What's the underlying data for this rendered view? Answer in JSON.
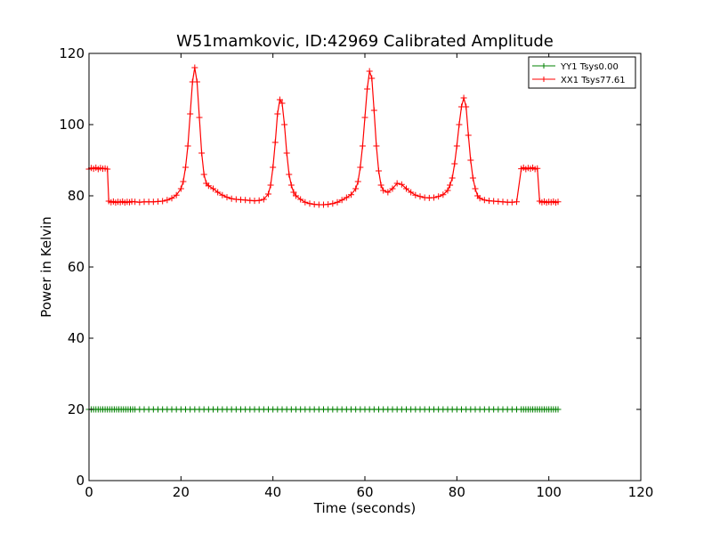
{
  "chart_data": {
    "type": "line",
    "title": "W51mamkovic, ID:42969 Calibrated Amplitude",
    "xlabel": "Time (seconds)",
    "ylabel": "Power in Kelvin",
    "xlim": [
      0,
      120
    ],
    "ylim": [
      0,
      120
    ],
    "xticks": [
      0,
      20,
      40,
      60,
      80,
      100,
      120
    ],
    "yticks": [
      0,
      20,
      40,
      60,
      80,
      100,
      120
    ],
    "grid": false,
    "legend_position": "top-right",
    "series": [
      {
        "name": "YY1 Tsys0.00",
        "color": "#008000",
        "marker": "+",
        "points": [
          [
            0,
            20
          ],
          [
            0.5,
            20
          ],
          [
            1,
            20
          ],
          [
            1.5,
            20
          ],
          [
            2,
            20
          ],
          [
            2.5,
            20
          ],
          [
            3,
            20
          ],
          [
            3.5,
            20
          ],
          [
            4,
            20
          ],
          [
            4.5,
            20
          ],
          [
            5,
            20
          ],
          [
            5.5,
            20
          ],
          [
            6,
            20
          ],
          [
            6.5,
            20
          ],
          [
            7,
            20
          ],
          [
            7.5,
            20
          ],
          [
            8,
            20
          ],
          [
            8.5,
            20
          ],
          [
            9,
            20
          ],
          [
            9.5,
            20
          ],
          [
            10,
            20
          ],
          [
            11,
            20
          ],
          [
            12,
            20
          ],
          [
            13,
            20
          ],
          [
            14,
            20
          ],
          [
            15,
            20
          ],
          [
            16,
            20
          ],
          [
            17,
            20
          ],
          [
            18,
            20
          ],
          [
            19,
            20
          ],
          [
            20,
            20
          ],
          [
            21,
            20
          ],
          [
            22,
            20
          ],
          [
            23,
            20
          ],
          [
            24,
            20
          ],
          [
            25,
            20
          ],
          [
            26,
            20
          ],
          [
            27,
            20
          ],
          [
            28,
            20
          ],
          [
            29,
            20
          ],
          [
            30,
            20
          ],
          [
            31,
            20
          ],
          [
            32,
            20
          ],
          [
            33,
            20
          ],
          [
            34,
            20
          ],
          [
            35,
            20
          ],
          [
            36,
            20
          ],
          [
            37,
            20
          ],
          [
            38,
            20
          ],
          [
            39,
            20
          ],
          [
            40,
            20
          ],
          [
            41,
            20
          ],
          [
            42,
            20
          ],
          [
            43,
            20
          ],
          [
            44,
            20
          ],
          [
            45,
            20
          ],
          [
            46,
            20
          ],
          [
            47,
            20
          ],
          [
            48,
            20
          ],
          [
            49,
            20
          ],
          [
            50,
            20
          ],
          [
            51,
            20
          ],
          [
            52,
            20
          ],
          [
            53,
            20
          ],
          [
            54,
            20
          ],
          [
            55,
            20
          ],
          [
            56,
            20
          ],
          [
            57,
            20
          ],
          [
            58,
            20
          ],
          [
            59,
            20
          ],
          [
            60,
            20
          ],
          [
            61,
            20
          ],
          [
            62,
            20
          ],
          [
            63,
            20
          ],
          [
            64,
            20
          ],
          [
            65,
            20
          ],
          [
            66,
            20
          ],
          [
            67,
            20
          ],
          [
            68,
            20
          ],
          [
            69,
            20
          ],
          [
            70,
            20
          ],
          [
            71,
            20
          ],
          [
            72,
            20
          ],
          [
            73,
            20
          ],
          [
            74,
            20
          ],
          [
            75,
            20
          ],
          [
            76,
            20
          ],
          [
            77,
            20
          ],
          [
            78,
            20
          ],
          [
            79,
            20
          ],
          [
            80,
            20
          ],
          [
            81,
            20
          ],
          [
            82,
            20
          ],
          [
            83,
            20
          ],
          [
            84,
            20
          ],
          [
            85,
            20
          ],
          [
            86,
            20
          ],
          [
            87,
            20
          ],
          [
            88,
            20
          ],
          [
            89,
            20
          ],
          [
            90,
            20
          ],
          [
            91,
            20
          ],
          [
            92,
            20
          ],
          [
            93,
            20
          ],
          [
            94,
            20
          ],
          [
            94.5,
            20
          ],
          [
            95,
            20
          ],
          [
            95.5,
            20
          ],
          [
            96,
            20
          ],
          [
            96.5,
            20
          ],
          [
            97,
            20
          ],
          [
            97.5,
            20
          ],
          [
            98,
            20
          ],
          [
            98.5,
            20
          ],
          [
            99,
            20
          ],
          [
            99.5,
            20
          ],
          [
            100,
            20
          ],
          [
            100.5,
            20
          ],
          [
            101,
            20
          ],
          [
            101.5,
            20
          ],
          [
            102,
            20
          ]
        ]
      },
      {
        "name": "XX1 Tsys77.61",
        "color": "#ff0000",
        "marker": "+",
        "points": [
          [
            0,
            87.5
          ],
          [
            0.5,
            87.8
          ],
          [
            1,
            87.6
          ],
          [
            1.5,
            87.9
          ],
          [
            2,
            87.5
          ],
          [
            2.5,
            87.8
          ],
          [
            3,
            87.6
          ],
          [
            3.5,
            87.7
          ],
          [
            4,
            87.5
          ],
          [
            4.3,
            78.5
          ],
          [
            4.8,
            78.2
          ],
          [
            5.3,
            78.4
          ],
          [
            5.8,
            78.1
          ],
          [
            6.3,
            78.3
          ],
          [
            6.8,
            78.2
          ],
          [
            7.3,
            78.4
          ],
          [
            7.8,
            78.1
          ],
          [
            8.3,
            78.3
          ],
          [
            8.8,
            78.2
          ],
          [
            9.3,
            78.4
          ],
          [
            10,
            78.3
          ],
          [
            11,
            78.2
          ],
          [
            12,
            78.3
          ],
          [
            13,
            78.3
          ],
          [
            14,
            78.3
          ],
          [
            15,
            78.4
          ],
          [
            16,
            78.5
          ],
          [
            17,
            78.8
          ],
          [
            18,
            79.3
          ],
          [
            19,
            80.2
          ],
          [
            20,
            82
          ],
          [
            20.5,
            84
          ],
          [
            21,
            88
          ],
          [
            21.5,
            94
          ],
          [
            22,
            103
          ],
          [
            22.5,
            112
          ],
          [
            23,
            116
          ],
          [
            23.5,
            112
          ],
          [
            24,
            102
          ],
          [
            24.5,
            92
          ],
          [
            25,
            86
          ],
          [
            25.5,
            83.5
          ],
          [
            26,
            82.8
          ],
          [
            27,
            82
          ],
          [
            28,
            81
          ],
          [
            29,
            80.2
          ],
          [
            30,
            79.6
          ],
          [
            31,
            79.2
          ],
          [
            32,
            79
          ],
          [
            33,
            78.9
          ],
          [
            34,
            78.8
          ],
          [
            35,
            78.7
          ],
          [
            36,
            78.6
          ],
          [
            37,
            78.7
          ],
          [
            38,
            79
          ],
          [
            39,
            80.5
          ],
          [
            39.5,
            83
          ],
          [
            40,
            88
          ],
          [
            40.5,
            95
          ],
          [
            41,
            103
          ],
          [
            41.5,
            107
          ],
          [
            42,
            106
          ],
          [
            42.5,
            100
          ],
          [
            43,
            92
          ],
          [
            43.5,
            86
          ],
          [
            44,
            83
          ],
          [
            44.5,
            81
          ],
          [
            45,
            80
          ],
          [
            46,
            79
          ],
          [
            47,
            78.2
          ],
          [
            48,
            77.8
          ],
          [
            49,
            77.6
          ],
          [
            50,
            77.5
          ],
          [
            51,
            77.5
          ],
          [
            52,
            77.6
          ],
          [
            53,
            77.8
          ],
          [
            54,
            78.2
          ],
          [
            55,
            78.8
          ],
          [
            56,
            79.5
          ],
          [
            57,
            80.3
          ],
          [
            58,
            82
          ],
          [
            58.5,
            84
          ],
          [
            59,
            88
          ],
          [
            59.5,
            94
          ],
          [
            60,
            102
          ],
          [
            60.5,
            110
          ],
          [
            61,
            115
          ],
          [
            61.5,
            113
          ],
          [
            62,
            104
          ],
          [
            62.5,
            94
          ],
          [
            63,
            87
          ],
          [
            63.5,
            83
          ],
          [
            64,
            81.5
          ],
          [
            65,
            81
          ],
          [
            66,
            82
          ],
          [
            67,
            83.5
          ],
          [
            68,
            83.2
          ],
          [
            69,
            82
          ],
          [
            70,
            81
          ],
          [
            71,
            80.2
          ],
          [
            72,
            79.8
          ],
          [
            73,
            79.5
          ],
          [
            74,
            79.4
          ],
          [
            75,
            79.5
          ],
          [
            76,
            79.8
          ],
          [
            77,
            80.3
          ],
          [
            78,
            81.5
          ],
          [
            78.5,
            83
          ],
          [
            79,
            85
          ],
          [
            79.5,
            89
          ],
          [
            80,
            94
          ],
          [
            80.5,
            100
          ],
          [
            81,
            105
          ],
          [
            81.5,
            107.5
          ],
          [
            82,
            105
          ],
          [
            82.5,
            97
          ],
          [
            83,
            90
          ],
          [
            83.5,
            85
          ],
          [
            84,
            82
          ],
          [
            84.5,
            80
          ],
          [
            85,
            79.3
          ],
          [
            86,
            78.8
          ],
          [
            87,
            78.6
          ],
          [
            88,
            78.5
          ],
          [
            89,
            78.4
          ],
          [
            90,
            78.3
          ],
          [
            91,
            78.2
          ],
          [
            92,
            78.2
          ],
          [
            93,
            78.3
          ],
          [
            94,
            87.6
          ],
          [
            94.5,
            87.9
          ],
          [
            95,
            87.5
          ],
          [
            95.5,
            87.8
          ],
          [
            96,
            87.6
          ],
          [
            96.5,
            87.9
          ],
          [
            97,
            87.5
          ],
          [
            97.5,
            87.7
          ],
          [
            98,
            78.5
          ],
          [
            98.5,
            78.2
          ],
          [
            99,
            78.4
          ],
          [
            99.5,
            78.1
          ],
          [
            100,
            78.3
          ],
          [
            100.5,
            78.2
          ],
          [
            101,
            78.4
          ],
          [
            101.5,
            78.1
          ],
          [
            102,
            78.3
          ]
        ]
      }
    ]
  }
}
